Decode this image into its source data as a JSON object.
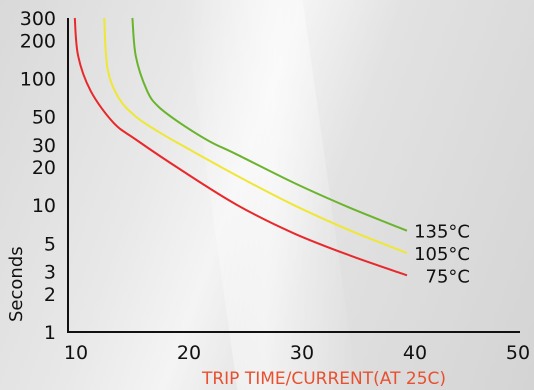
{
  "chart_data": {
    "type": "line",
    "xlabel": "TRIP TIME/CURRENT(AT 25C)",
    "ylabel": "Seconds",
    "xlim": [
      10,
      50
    ],
    "ylim": [
      1,
      300
    ],
    "yscale": "log",
    "x_ticks": [
      "10",
      "20",
      "30",
      "40",
      "50"
    ],
    "y_ticks": [
      {
        "value": 1,
        "label": "1"
      },
      {
        "value": 2,
        "label": "2"
      },
      {
        "value": 3,
        "label": "3"
      },
      {
        "value": 5,
        "label": "5"
      },
      {
        "value": 10,
        "label": "10"
      },
      {
        "value": 20,
        "label": "20"
      },
      {
        "value": 30,
        "label": "30"
      },
      {
        "value": 50,
        "label": "50"
      },
      {
        "value": 100,
        "label": "100"
      },
      {
        "value": 200,
        "label": "200"
      },
      {
        "value": 300,
        "label": "300"
      }
    ],
    "series": [
      {
        "name": "135°C",
        "color": "#6ab42d",
        "points": [
          [
            15.7,
            300
          ],
          [
            16,
            150
          ],
          [
            17,
            80
          ],
          [
            18,
            60
          ],
          [
            20,
            44
          ],
          [
            22.5,
            32
          ],
          [
            25,
            25
          ],
          [
            30,
            15
          ],
          [
            35,
            9.5
          ],
          [
            40,
            6.3
          ]
        ]
      },
      {
        "name": "105°C",
        "color": "#eee733",
        "points": [
          [
            13.2,
            300
          ],
          [
            13.5,
            120
          ],
          [
            14.5,
            70
          ],
          [
            16,
            50
          ],
          [
            18,
            38
          ],
          [
            20,
            30
          ],
          [
            25,
            17
          ],
          [
            30,
            10
          ],
          [
            35,
            6.3
          ],
          [
            40,
            4.2
          ]
        ]
      },
      {
        "name": "75°C",
        "color": "#e8282b",
        "points": [
          [
            10.6,
            300
          ],
          [
            10.9,
            150
          ],
          [
            12,
            80
          ],
          [
            14,
            45
          ],
          [
            16,
            33
          ],
          [
            20,
            19
          ],
          [
            25,
            10
          ],
          [
            30,
            6.0
          ],
          [
            35,
            4.0
          ],
          [
            40,
            2.8
          ]
        ]
      }
    ]
  }
}
